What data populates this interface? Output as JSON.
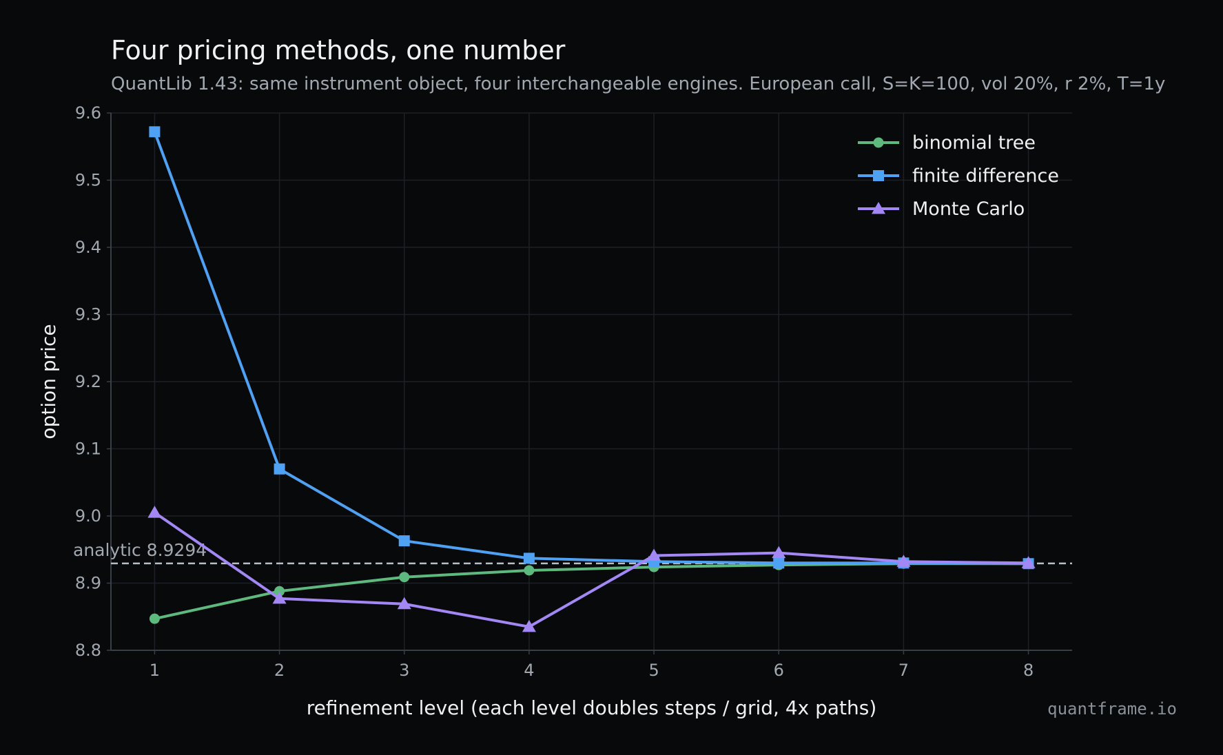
{
  "chart_data": {
    "type": "line",
    "title": "Four pricing methods, one number",
    "subtitle": "QuantLib 1.43: same instrument object, four interchangeable engines. European call, S=K=100, vol 20%, r 2%, T=1y",
    "xlabel": "refinement level (each level doubles steps / grid, 4x paths)",
    "ylabel": "option price",
    "x": [
      1,
      2,
      3,
      4,
      5,
      6,
      7,
      8
    ],
    "xlim": [
      0.65,
      8.35
    ],
    "ylim": [
      8.8,
      9.6
    ],
    "yticks": [
      "8.8",
      "8.9",
      "9.0",
      "9.1",
      "9.2",
      "9.3",
      "9.4",
      "9.5",
      "9.6"
    ],
    "xticks": [
      "1",
      "2",
      "3",
      "4",
      "5",
      "6",
      "7",
      "8"
    ],
    "grid": true,
    "legend_position": "top-right",
    "series": [
      {
        "name": "binomial tree",
        "color": "#5db97e",
        "marker": "circle",
        "values": [
          8.847,
          8.888,
          8.909,
          8.919,
          8.924,
          8.927,
          8.929,
          8.929
        ]
      },
      {
        "name": "finite difference",
        "color": "#4ea1f3",
        "marker": "square",
        "values": [
          9.572,
          9.07,
          8.963,
          8.937,
          8.932,
          8.93,
          8.93,
          8.929
        ]
      },
      {
        "name": "Monte Carlo",
        "color": "#a387f5",
        "marker": "triangle",
        "values": [
          9.005,
          8.877,
          8.869,
          8.835,
          8.941,
          8.945,
          8.932,
          8.93
        ]
      }
    ],
    "reference_line": {
      "label": "analytic  8.9294",
      "value": 8.9294,
      "color": "#b8bec6"
    }
  },
  "watermark": "quantframe.io"
}
